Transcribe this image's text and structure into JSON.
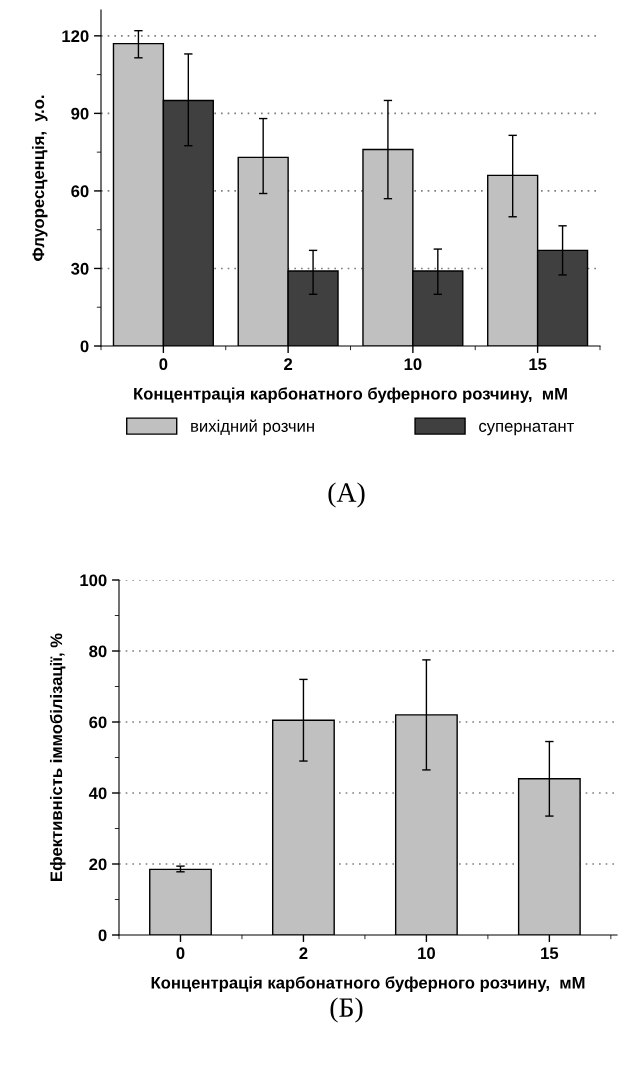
{
  "chart_data": [
    {
      "type": "bar",
      "categories": [
        "0",
        "2",
        "10",
        "15"
      ],
      "xlabel": "Концентрація карбонатного буферного розчину,  мМ",
      "ylabel": "Флуоресценція,  у.о.",
      "ylim": [
        0,
        130
      ],
      "yticks": [
        0,
        30,
        60,
        90,
        120
      ],
      "grid": "y",
      "legend": "bottom",
      "annotations": [
        "(А)"
      ],
      "series": [
        {
          "name": "вихідний розчин",
          "color": "#c0c0c0",
          "values": [
            117,
            73,
            76,
            66
          ],
          "errors": [
            [
              111.5,
              122
            ],
            [
              59,
              88
            ],
            [
              57,
              95
            ],
            [
              50,
              81.5
            ]
          ]
        },
        {
          "name": "супернатант",
          "color": "#404040",
          "values": [
            95,
            29,
            29,
            37
          ],
          "errors": [
            [
              77.5,
              113
            ],
            [
              20,
              37
            ],
            [
              20,
              37.5
            ],
            [
              27.5,
              46.5
            ]
          ]
        }
      ]
    },
    {
      "type": "bar",
      "categories": [
        "0",
        "2",
        "10",
        "15"
      ],
      "xlabel": "Концентрація карбонатного буферного розчину,  мМ",
      "ylabel": "Ефективність іммобілізації, %",
      "ylim": [
        0,
        100
      ],
      "yticks": [
        0,
        20,
        40,
        60,
        80,
        100
      ],
      "grid": "y",
      "annotations": [
        "(Б)"
      ],
      "series": [
        {
          "color": "#c0c0c0",
          "values": [
            18.5,
            60.5,
            62,
            44
          ],
          "errors": [
            [
              17.8,
              19.4
            ],
            [
              49,
              72
            ],
            [
              46.5,
              77.5
            ],
            [
              33.5,
              54.5
            ]
          ]
        }
      ]
    }
  ]
}
